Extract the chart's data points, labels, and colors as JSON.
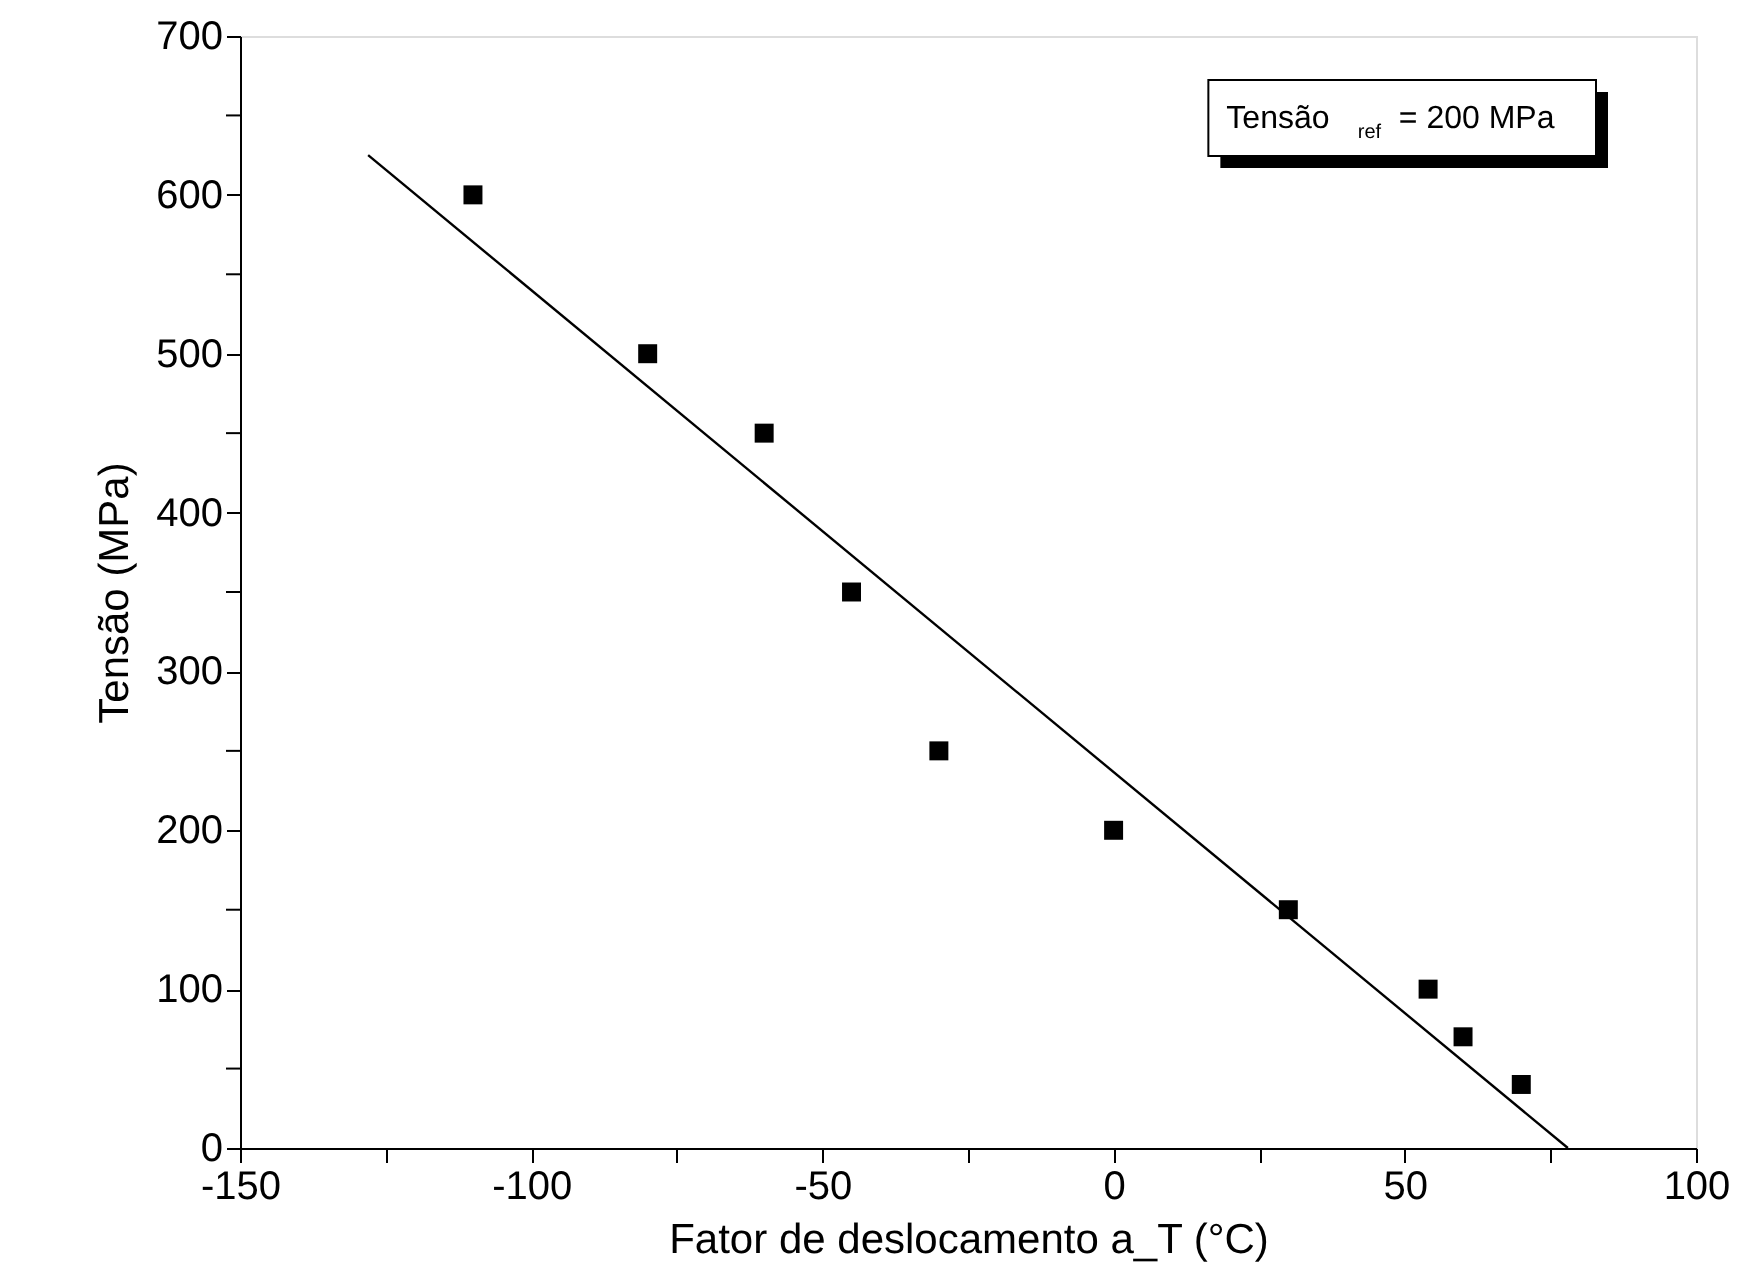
{
  "chart_data": {
    "type": "scatter",
    "xlabel": "Fator de deslocamento a_T (°C)",
    "ylabel": "Tensão (MPa)",
    "annotations": [
      "Tensão $_{ref}$ = 200 MPa"
    ],
    "xlim": [
      -150,
      100
    ],
    "ylim": [
      0,
      700
    ],
    "xticks": [
      -150,
      {
        "value": -125,
        "label": null
      },
      -100,
      {
        "value": -75,
        "label": null
      },
      -50,
      {
        "value": -25,
        "label": null
      },
      0,
      {
        "value": 25,
        "label": null
      },
      50,
      {
        "value": 75,
        "label": null
      },
      100
    ],
    "yticks": [
      0,
      {
        "value": 50,
        "label": null
      },
      100,
      {
        "value": 150,
        "label": null
      },
      200,
      {
        "value": 250,
        "label": null
      },
      300,
      {
        "value": 350,
        "label": null
      },
      400,
      {
        "value": 450,
        "label": null
      },
      500,
      {
        "value": 550,
        "label": null
      },
      600,
      {
        "value": 650,
        "label": null
      },
      700
    ],
    "grid": false,
    "marker": "square",
    "series": [
      {
        "type": "scatter",
        "color": "#000000",
        "x": [
          -110,
          -80,
          -60,
          -45,
          -30,
          0,
          30,
          54,
          60,
          70
        ],
        "values": [
          600,
          500,
          450,
          350,
          250,
          200,
          150,
          100,
          70,
          40
        ]
      },
      {
        "type": "line",
        "color": "#000000",
        "x": [
          -128,
          78
        ],
        "values": [
          625,
          0
        ],
        "marker": "none",
        "line_style": "solid"
      }
    ]
  }
}
